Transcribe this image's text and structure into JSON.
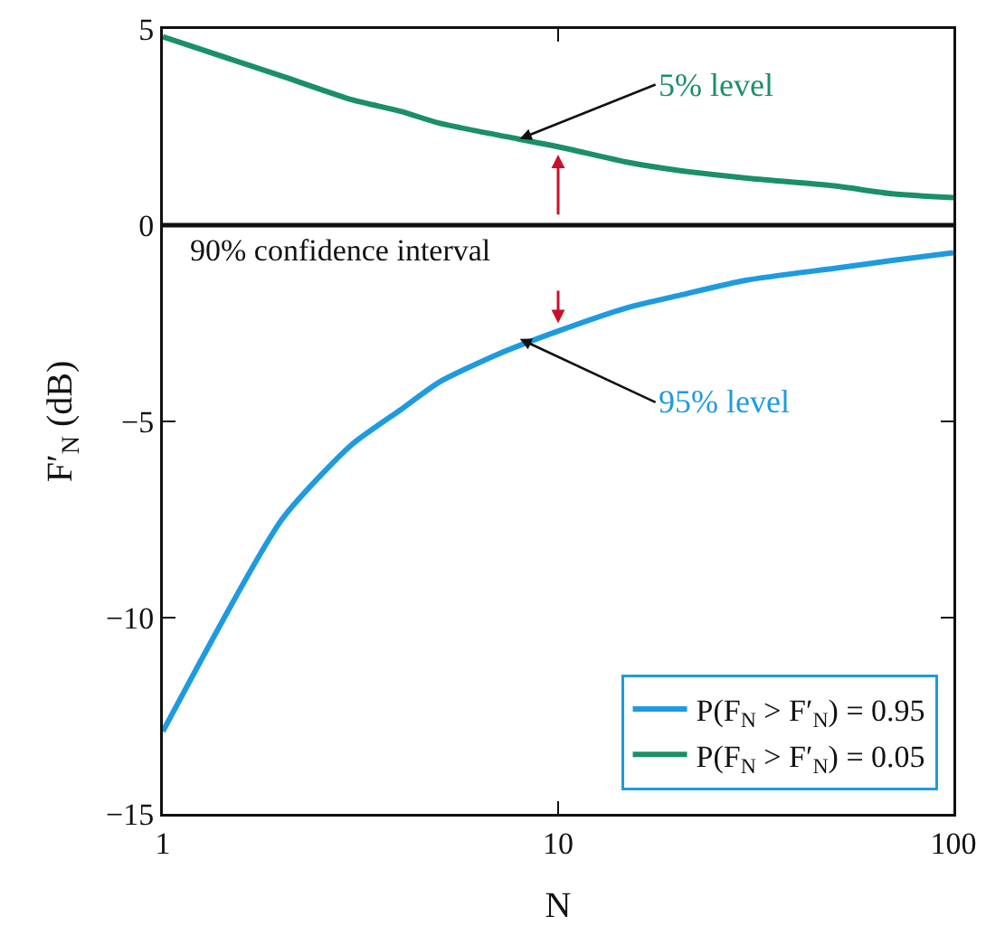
{
  "chart_data": {
    "type": "line",
    "xlabel": "N",
    "ylabel": "F′$_{N}$ (dB)",
    "log": "x",
    "x": [
      1,
      2,
      3,
      4,
      5,
      7,
      10,
      15,
      20,
      30,
      50,
      70,
      100
    ],
    "series": [
      {
        "name": "P(F$_{N}$ > F′$_{N}$) = 0.95",
        "color": "#1e9be0",
        "values": [
          -12.9,
          -7.5,
          -5.6,
          -4.7,
          -4.0,
          -3.3,
          -2.7,
          -2.1,
          -1.8,
          -1.4,
          -1.1,
          -0.9,
          -0.7
        ]
      },
      {
        "name": "P(F$_{N}$ > F′$_{N}$) = 0.05",
        "color": "#1a8f6a",
        "values": [
          4.8,
          3.8,
          3.2,
          2.9,
          2.6,
          2.3,
          2.0,
          1.6,
          1.4,
          1.2,
          1.0,
          0.8,
          0.7
        ]
      }
    ],
    "xlim": [
      1,
      100
    ],
    "xticks": [
      1,
      10,
      100
    ],
    "ylim": [
      -15,
      5
    ],
    "yticks": [
      5,
      0,
      {
        "value": -5,
        "label": "−5"
      },
      {
        "value": -10,
        "label": "−10"
      },
      {
        "value": -15,
        "label": "−15"
      }
    ],
    "ref_lines": [
      {
        "axis": "y",
        "value": 0,
        "color": "#111111"
      }
    ],
    "annotations": [
      {
        "text": "5% level",
        "x": 8,
        "y": 2.2
      },
      {
        "text": "95% level",
        "x": 8,
        "y": -2.9
      },
      "90% confidence interval"
    ],
    "legend": "bottom right",
    "grid": false,
    "marker": "none",
    "line_style": "solid"
  }
}
